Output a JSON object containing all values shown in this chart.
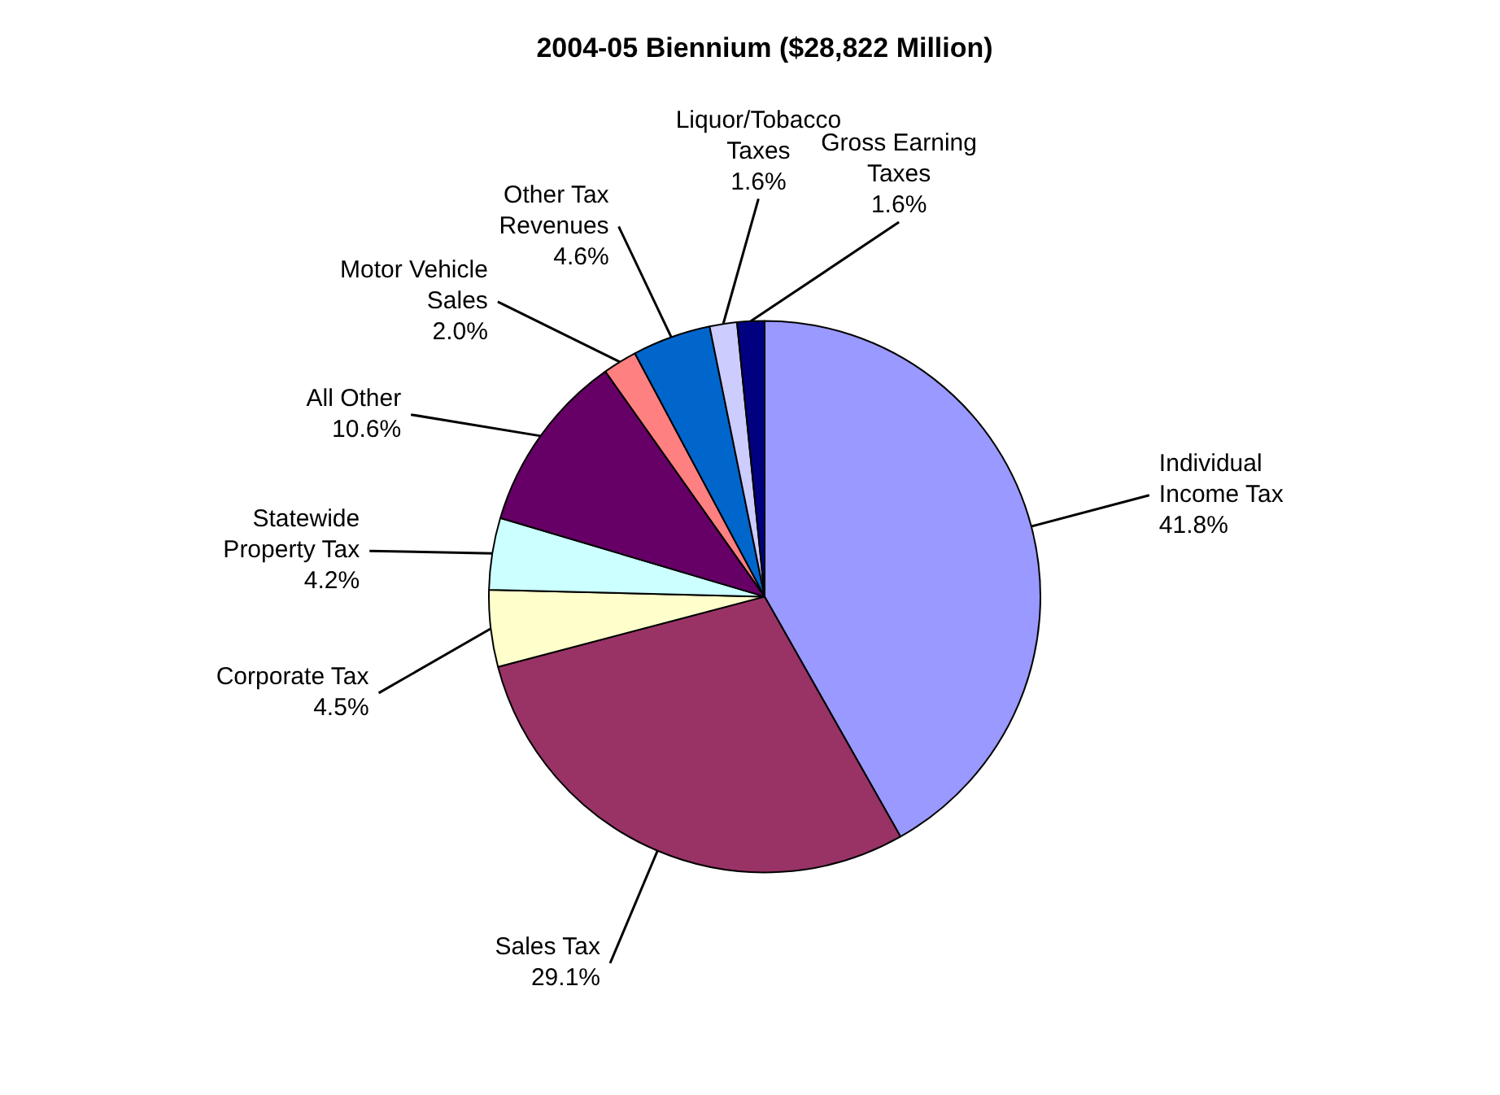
{
  "chart_data": {
    "type": "pie",
    "title": "2004-05 Biennium ($28,822 Million)",
    "categories": [
      "Individual Income Tax",
      "Sales Tax",
      "Corporate Tax",
      "Statewide Property Tax",
      "All Other",
      "Motor Vehicle Sales",
      "Other Tax Revenues",
      "Liquor/Tobacco Taxes",
      "Gross Earning Taxes"
    ],
    "values": [
      41.8,
      29.1,
      4.5,
      4.2,
      10.6,
      2.0,
      4.6,
      1.6,
      1.6
    ],
    "colors": [
      "#9999ff",
      "#993366",
      "#ffffcc",
      "#ccffff",
      "#660066",
      "#ff8080",
      "#0066cc",
      "#ccccff",
      "#000080"
    ],
    "value_labels": [
      "41.8%",
      "29.1%",
      "4.5%",
      "4.2%",
      "10.6%",
      "2.0%",
      "4.6%",
      "1.6%",
      "1.6%"
    ],
    "legend": false
  }
}
